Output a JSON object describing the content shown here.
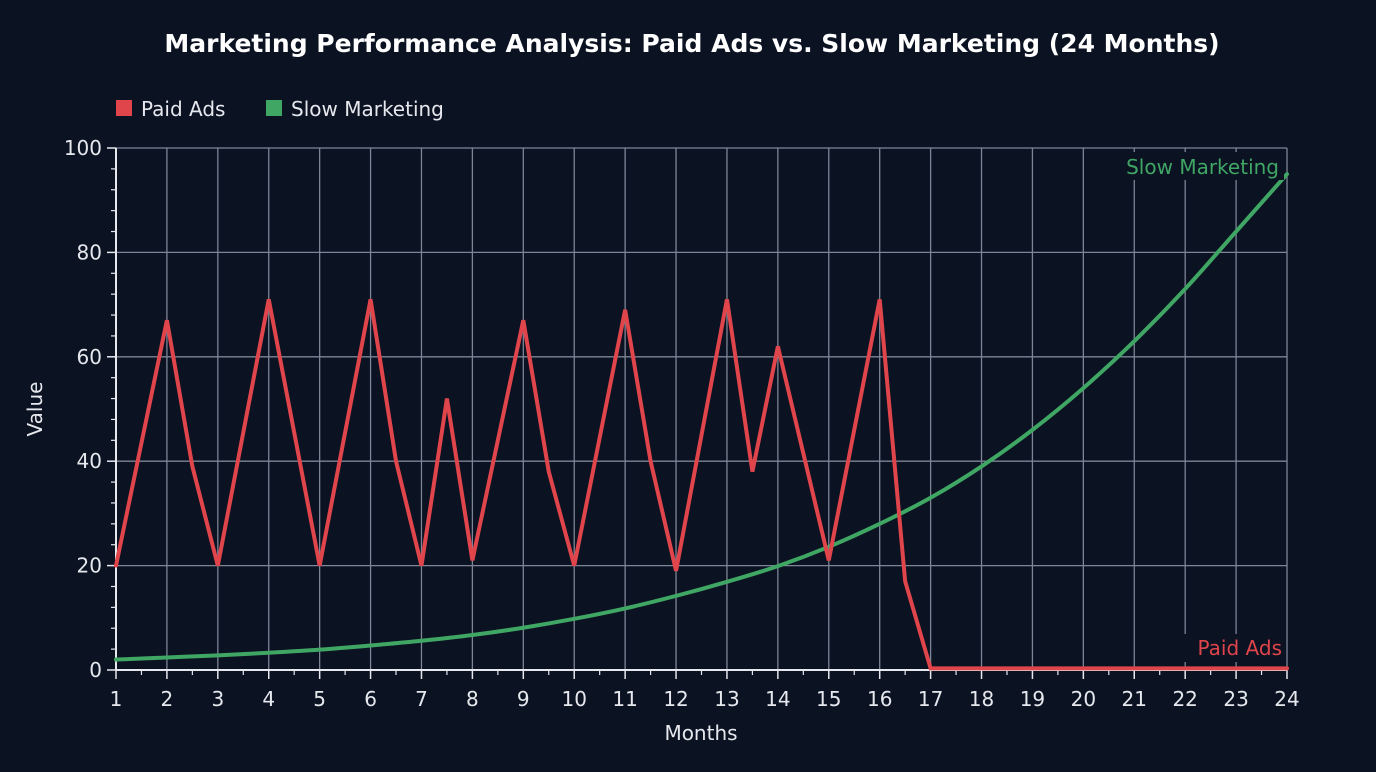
{
  "chart_data": {
    "type": "line",
    "title": "Marketing Performance Analysis: Paid Ads vs. Slow Marketing (24 Months)",
    "xlabel": "Months",
    "ylabel": "Value",
    "xlim": [
      1,
      24
    ],
    "ylim": [
      0,
      100
    ],
    "x_ticks": [
      1,
      2,
      3,
      4,
      5,
      6,
      7,
      8,
      9,
      10,
      11,
      12,
      13,
      14,
      15,
      16,
      17,
      18,
      19,
      20,
      21,
      22,
      23,
      24
    ],
    "y_ticks": [
      0,
      20,
      40,
      60,
      80,
      100
    ],
    "grid": true,
    "legend_position": "top-left",
    "colors": {
      "background": "#0b1222",
      "grid": "#7d8597",
      "text": "#e6e8ee",
      "paid": "#e0454b",
      "slow": "#3fa664"
    },
    "series": [
      {
        "name": "Paid Ads",
        "color": "#e0454b",
        "end_label": "Paid Ads",
        "points": [
          [
            1,
            20
          ],
          [
            2,
            67
          ],
          [
            2.5,
            39
          ],
          [
            3,
            20
          ],
          [
            4,
            71
          ],
          [
            5,
            20
          ],
          [
            6,
            71
          ],
          [
            6.5,
            40
          ],
          [
            7,
            20
          ],
          [
            7.5,
            52
          ],
          [
            8,
            21
          ],
          [
            9,
            67
          ],
          [
            9.5,
            38
          ],
          [
            10,
            20
          ],
          [
            11,
            69
          ],
          [
            11.5,
            40
          ],
          [
            12,
            19
          ],
          [
            13,
            71
          ],
          [
            13.5,
            38
          ],
          [
            14,
            62
          ],
          [
            15,
            21
          ],
          [
            16,
            71
          ],
          [
            16.5,
            17
          ],
          [
            17,
            0.3
          ],
          [
            18,
            0.3
          ],
          [
            19,
            0.3
          ],
          [
            20,
            0.3
          ],
          [
            21,
            0.3
          ],
          [
            22,
            0.3
          ],
          [
            23,
            0.3
          ],
          [
            24,
            0.3
          ]
        ]
      },
      {
        "name": "Slow Marketing",
        "color": "#3fa664",
        "end_label": "Slow Marketing",
        "points": [
          [
            1,
            2
          ],
          [
            2,
            2.4
          ],
          [
            3,
            2.8
          ],
          [
            4,
            3.3
          ],
          [
            5,
            3.9
          ],
          [
            6,
            4.7
          ],
          [
            7,
            5.6
          ],
          [
            8,
            6.7
          ],
          [
            9,
            8.1
          ],
          [
            10,
            9.8
          ],
          [
            11,
            11.8
          ],
          [
            12,
            14.2
          ],
          [
            13,
            16.9
          ],
          [
            14,
            19.9
          ],
          [
            15,
            23.6
          ],
          [
            16,
            28
          ],
          [
            17,
            33
          ],
          [
            18,
            39
          ],
          [
            19,
            46
          ],
          [
            20,
            54
          ],
          [
            21,
            63
          ],
          [
            22,
            73
          ],
          [
            23,
            84
          ],
          [
            24,
            95
          ]
        ]
      }
    ]
  }
}
